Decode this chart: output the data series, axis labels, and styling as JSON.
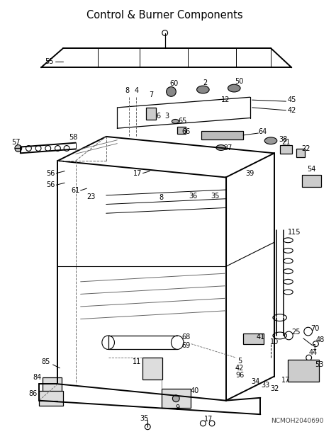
{
  "title": "Control & Burner Components",
  "watermark": "NCMOH2040690",
  "bg_color": "#ffffff",
  "fg_color": "#000000",
  "title_fontsize": 10.5,
  "label_fontsize": 7.0,
  "figsize": [
    4.74,
    6.2
  ],
  "dpi": 100
}
